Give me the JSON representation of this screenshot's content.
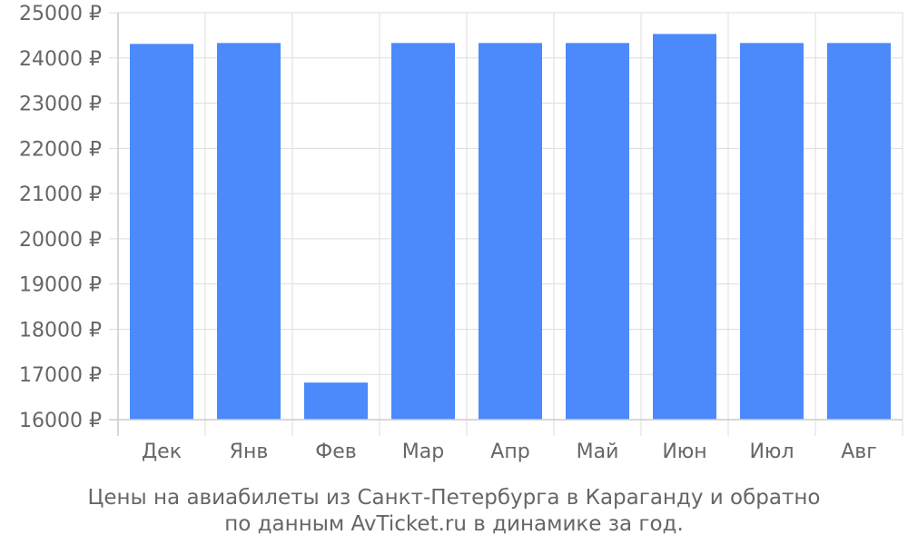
{
  "chart_data": {
    "type": "bar",
    "categories": [
      "Дек",
      "Янв",
      "Фев",
      "Мар",
      "Апр",
      "Май",
      "Июн",
      "Июл",
      "Авг"
    ],
    "series": [
      {
        "values": [
          24310,
          24330,
          16820,
          24330,
          24330,
          24330,
          24530,
          24330,
          24330
        ]
      }
    ],
    "ylim": [
      16000,
      25000
    ],
    "yticks": [
      "16000 ₽",
      "17000 ₽",
      "18000 ₽",
      "19000 ₽",
      "20000 ₽",
      "21000 ₽",
      "22000 ₽",
      "23000 ₽",
      "24000 ₽",
      "25000 ₽"
    ],
    "grid": true,
    "bar_color": "#4c89fb",
    "title": "Цены на авиабилеты из Санкт-Петербурга в Караганду и обратно",
    "subtitle": "по данным AvTicket.ru в динамике за год."
  }
}
